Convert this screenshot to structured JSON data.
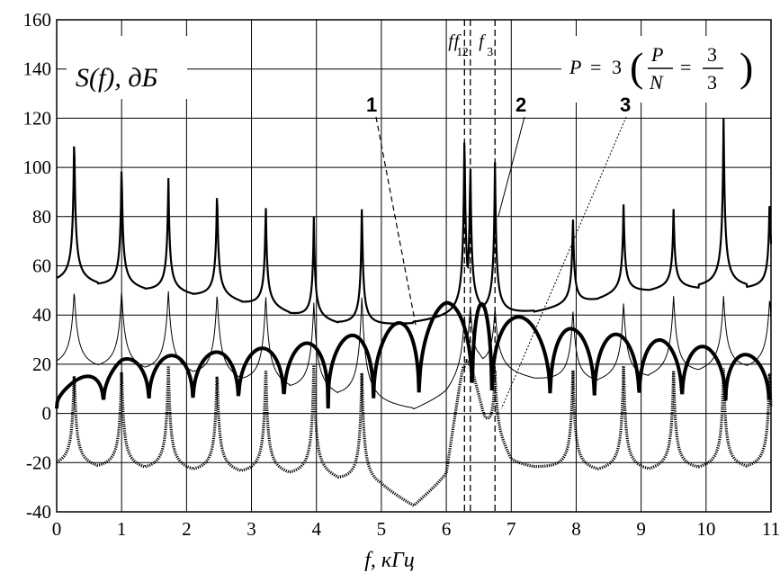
{
  "chart_data": {
    "type": "line",
    "xlabel": "f, кГц",
    "ylabel": "S(f), дБ",
    "xlim": [
      0,
      11
    ],
    "ylim": [
      -40,
      160
    ],
    "x_ticks": [
      "0",
      "1",
      "2",
      "3",
      "4",
      "5",
      "6",
      "7",
      "8",
      "9",
      "10",
      "11"
    ],
    "y_ticks": [
      "-40",
      "-20",
      "0",
      "20",
      "40",
      "60",
      "80",
      "100",
      "120",
      "140",
      "160"
    ],
    "grid": true,
    "annotation": {
      "p_label": "P",
      "p_eq": "=",
      "p_value": "3",
      "frac_p": "P",
      "frac_n": "N",
      "frac_eq": "=",
      "frac_num": "3",
      "frac_den": "3"
    },
    "freq_markers": [
      {
        "label": "f",
        "sub": "1",
        "x": 6.28
      },
      {
        "label": "f",
        "sub": "2",
        "x": 6.37
      },
      {
        "label": "f",
        "sub": "3",
        "x": 6.75
      }
    ],
    "series": [
      {
        "name": "1",
        "style": "thick"
      },
      {
        "name": "2",
        "style": "medium"
      },
      {
        "name": "3",
        "style": "thin"
      }
    ],
    "peaks": {
      "x": [
        0.27,
        1.0,
        1.72,
        2.47,
        3.22,
        3.96,
        4.7,
        6.28,
        6.37,
        6.75,
        7.95,
        8.73,
        9.5,
        10.27,
        10.98
      ],
      "curve2_peak": [
        116,
        103,
        97,
        93,
        86,
        80,
        86,
        117,
        105,
        104,
        81,
        86,
        84,
        122,
        90
      ],
      "curve2_valley": [
        52,
        50,
        48,
        46,
        42,
        37,
        34,
        38,
        40,
        38,
        43,
        48,
        50,
        50,
        50
      ],
      "curve3_peak": [
        50,
        50,
        50,
        49,
        48,
        45,
        48,
        40,
        44,
        43,
        42,
        45,
        48,
        48,
        47
      ]
    },
    "curve1_nulls": [
      0.0,
      0.72,
      1.42,
      2.1,
      2.8,
      3.5,
      4.18,
      4.88,
      5.58,
      6.4,
      6.7,
      7.6,
      8.28,
      8.97,
      9.63,
      10.3,
      10.97
    ],
    "curve1_env": {
      "x": [
        0.0,
        1.0,
        2.0,
        3.0,
        4.0,
        5.0,
        6.0,
        6.4,
        7.0,
        8.0,
        9.0,
        10.0,
        11.0
      ],
      "y": [
        10,
        22,
        24,
        26,
        29,
        34,
        45,
        46,
        40,
        34,
        31,
        27,
        22
      ]
    },
    "curve3_valley": {
      "x": [
        0.0,
        1.0,
        2.0,
        3.0,
        4.0,
        5.0,
        5.5,
        6.0,
        6.5,
        7.0,
        8.0,
        9.0,
        10.0,
        11.0
      ],
      "y": [
        17,
        16,
        14,
        10,
        6,
        1,
        0,
        5,
        18,
        14,
        10,
        12,
        15,
        17
      ]
    },
    "curve_bottom": {
      "valley": {
        "x": [
          0.0,
          1.0,
          2.0,
          3.0,
          4.0,
          5.0,
          5.5,
          6.0,
          6.3,
          6.6,
          7.0,
          8.0,
          9.0,
          10.0,
          11.0
        ],
        "y": [
          -23,
          -24,
          -25,
          -26,
          -27,
          -32,
          -39,
          -28,
          25,
          -5,
          -22,
          -25,
          -25,
          -24,
          -24
        ]
      }
    }
  }
}
